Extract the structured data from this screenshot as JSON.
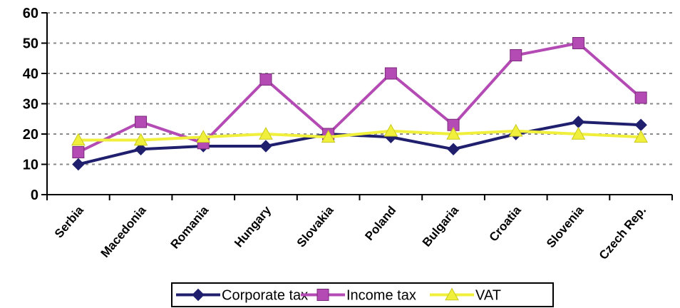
{
  "chart_data": {
    "type": "line",
    "title": "",
    "xlabel": "",
    "ylabel": "",
    "ylim": [
      0,
      60
    ],
    "yticks": [
      0,
      10,
      20,
      30,
      40,
      50,
      60
    ],
    "grid": true,
    "legend_position": "bottom",
    "categories": [
      "Serbia",
      "Macedonia",
      "Romania",
      "Hungary",
      "Slovakia",
      "Poland",
      "Bulgaria",
      "Croatia",
      "Slovenia",
      "Czech Rep."
    ],
    "series": [
      {
        "name": "Corporate tax",
        "color": "#1f1f6e",
        "marker": "diamond",
        "values": [
          10,
          15,
          16,
          16,
          20,
          19,
          15,
          20,
          24,
          23
        ]
      },
      {
        "name": "Income tax",
        "color": "#b44bb4",
        "marker": "square",
        "values": [
          14,
          24,
          17,
          38,
          20,
          40,
          23,
          46,
          50,
          32
        ]
      },
      {
        "name": "VAT",
        "color": "#f0f03c",
        "marker": "triangle",
        "values": [
          18,
          18,
          19,
          20,
          19,
          21,
          20,
          21,
          20,
          19
        ]
      }
    ]
  }
}
